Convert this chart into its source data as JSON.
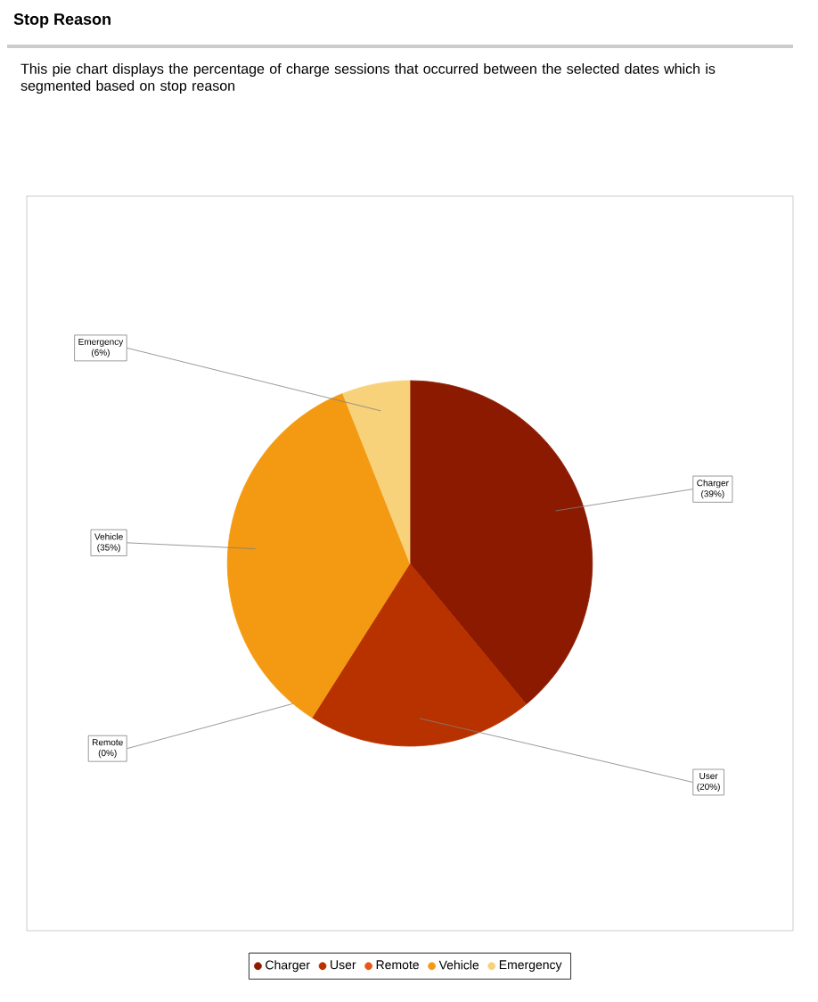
{
  "chart_data": {
    "type": "pie",
    "title": "Stop Reason",
    "subtitle": "This pie chart displays the percentage of charge sessions that occurred between the selected dates which is segmented based on stop reason",
    "categories": [
      "Charger",
      "User",
      "Remote",
      "Vehicle",
      "Emergency"
    ],
    "values": [
      39,
      20,
      0,
      35,
      6
    ],
    "value_labels": [
      "(39%)",
      "(20%)",
      "(0%)",
      "(35%)",
      "(6%)"
    ],
    "colors": [
      "#8b1a00",
      "#b83200",
      "#e8561a",
      "#f39a12",
      "#f8d27a"
    ],
    "legend": "bottom"
  }
}
